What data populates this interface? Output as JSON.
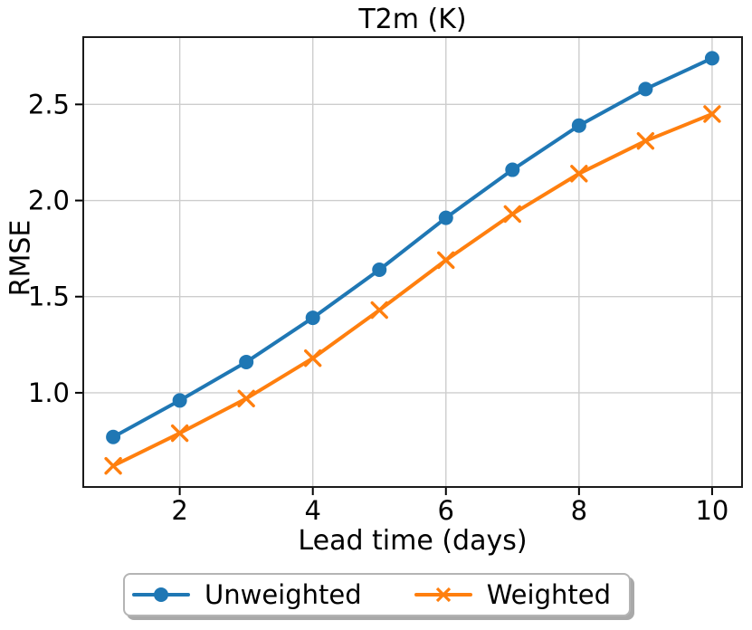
{
  "figure_title": "T2m (K)",
  "colors": {
    "unweighted": "#1f77b4",
    "weighted": "#ff7f0e",
    "grid": "#cdcdcd",
    "spine": "#1a1a1a",
    "tick": "#000000",
    "legend_border": "#b4b4b4",
    "legend_shadow": "#a9a9a9",
    "background": "#ffffff"
  },
  "chart_data": {
    "type": "line",
    "title": "T2m (K)",
    "xlabel": "Lead time (days)",
    "ylabel": "RMSE",
    "x": [
      1,
      2,
      3,
      4,
      5,
      6,
      7,
      8,
      9,
      10
    ],
    "series": [
      {
        "name": "Unweighted",
        "color": "#1f77b4",
        "marker": "circle",
        "values": [
          0.77,
          0.96,
          1.16,
          1.39,
          1.64,
          1.91,
          2.16,
          2.39,
          2.58,
          2.74
        ]
      },
      {
        "name": "Weighted",
        "color": "#ff7f0e",
        "marker": "x",
        "values": [
          0.62,
          0.79,
          0.97,
          1.18,
          1.43,
          1.69,
          1.93,
          2.14,
          2.31,
          2.45
        ]
      }
    ],
    "xticks": [
      2,
      4,
      6,
      8,
      10
    ],
    "yticks": [
      1.0,
      1.5,
      2.0,
      2.5
    ],
    "xlim": [
      0.55,
      10.45
    ],
    "ylim": [
      0.51,
      2.85
    ],
    "grid": true,
    "legend_position": "bottom-outside"
  },
  "legend": {
    "items": [
      {
        "label": "Unweighted"
      },
      {
        "label": "Weighted"
      }
    ]
  }
}
